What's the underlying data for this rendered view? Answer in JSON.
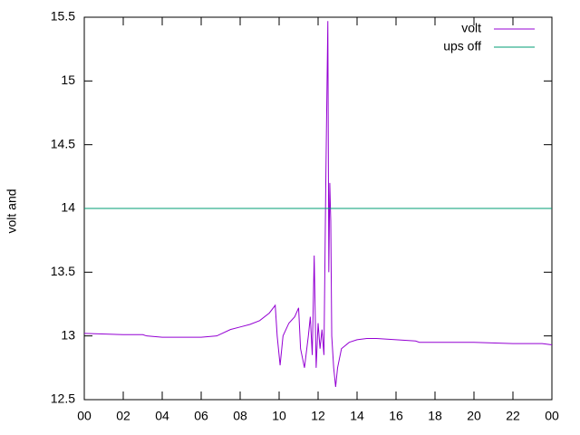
{
  "chart_data": {
    "type": "line",
    "ylabel": "volt and",
    "x": [
      0,
      2,
      3,
      3.2,
      4,
      6,
      6.8,
      7.5,
      8,
      8.5,
      9,
      9.5,
      9.8,
      9.9,
      10.05,
      10.2,
      10.5,
      10.8,
      11.0,
      11.1,
      11.3,
      11.5,
      11.6,
      11.7,
      11.8,
      11.9,
      12.0,
      12.1,
      12.2,
      12.3,
      12.4,
      12.5,
      12.55,
      12.6,
      12.65,
      12.7,
      12.8,
      12.9,
      13.0,
      13.2,
      13.6,
      14,
      14.5,
      15,
      16,
      17,
      17.2,
      20,
      22,
      23.5,
      24
    ],
    "series": [
      {
        "name": "volt",
        "color": "#9400d3",
        "values": [
          13.02,
          13.01,
          13.01,
          13.0,
          12.99,
          12.99,
          13.0,
          13.05,
          13.07,
          13.09,
          13.12,
          13.18,
          13.24,
          13.0,
          12.77,
          13.0,
          13.1,
          13.15,
          13.22,
          12.9,
          12.75,
          13.0,
          13.15,
          12.85,
          13.63,
          12.75,
          13.1,
          12.9,
          13.05,
          12.85,
          14.27,
          15.47,
          13.5,
          14.2,
          13.9,
          13.0,
          12.75,
          12.6,
          12.75,
          12.9,
          12.95,
          12.97,
          12.98,
          12.98,
          12.97,
          12.96,
          12.95,
          12.95,
          12.94,
          12.94,
          12.93
        ]
      },
      {
        "name": "ups off",
        "color": "#009e73",
        "values": [
          14,
          14,
          14,
          14,
          14,
          14,
          14,
          14,
          14,
          14,
          14,
          14,
          14,
          14,
          14,
          14,
          14,
          14,
          14,
          14,
          14,
          14,
          14,
          14,
          14,
          14,
          14,
          14,
          14,
          14,
          14,
          14,
          14,
          14,
          14,
          14,
          14,
          14,
          14,
          14,
          14,
          14,
          14,
          14,
          14,
          14,
          14,
          14,
          14,
          14,
          14
        ]
      }
    ],
    "xlim": [
      0,
      24
    ],
    "xticks": [
      {
        "value": 0,
        "label": "00"
      },
      {
        "value": 2,
        "label": "02"
      },
      {
        "value": 4,
        "label": "04"
      },
      {
        "value": 6,
        "label": "06"
      },
      {
        "value": 8,
        "label": "08"
      },
      10,
      12,
      14,
      16,
      18,
      20,
      22,
      {
        "value": 24,
        "label": "00"
      }
    ],
    "ylim": [
      12.5,
      15.5
    ],
    "yticks": [
      12.5,
      13,
      13.5,
      14,
      14.5,
      15,
      15.5
    ],
    "legend": "top-right"
  }
}
